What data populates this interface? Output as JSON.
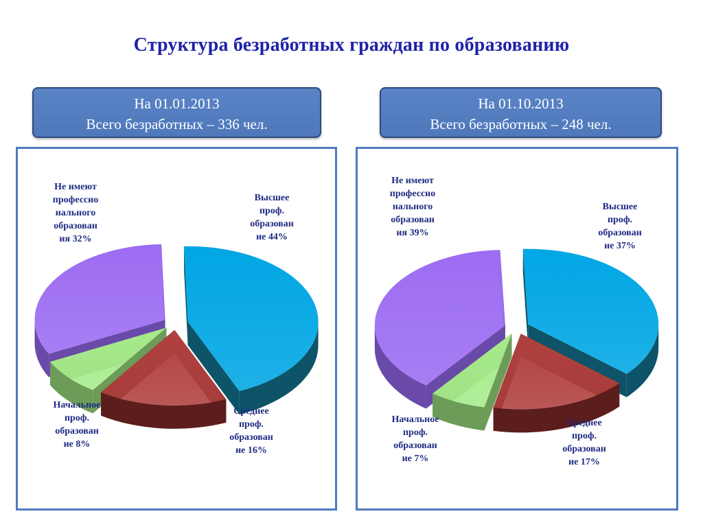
{
  "title": "Структура безработных граждан по образованию",
  "panels": {
    "left": {
      "line1": "На 01.01.2013",
      "line2": "Всего безработных – 336 чел."
    },
    "right": {
      "line1": "На 01.10.2013",
      "line2": "Всего безработных – 248 чел."
    }
  },
  "labels": {
    "left": {
      "none": "Не имеют\nпрофессио\nнального\nобразован\nия 32%",
      "higher": "Высшее\nпроф.\nобразован\nие 44%",
      "primary": "Начальное\nпроф.\nобразован\nие 8%",
      "secondary": "Среднее\nпроф.\nобразован\nие 16%"
    },
    "right": {
      "none": "Не имеют\nпрофессио\nнального\nобразован\nия 39%",
      "higher": "Высшее\nпроф.\nобразован\nие 37%",
      "primary": "Начальное\nпроф.\nобразован\nие 7%",
      "secondary": "Среднее\nпроф.\nобразован\nие 17%"
    }
  },
  "chart_data": [
    {
      "type": "pie",
      "title": "На 01.01.2013",
      "categories": [
        "Высшее проф. образование",
        "Среднее проф. образование",
        "Начальное проф. образование",
        "Не имеют профессионального образования"
      ],
      "values": [
        44,
        16,
        8,
        32
      ],
      "colors": [
        "#00a6e4",
        "#b0413f",
        "#a7eb8c",
        "#9c6cf2"
      ],
      "side_colors": [
        "#0d5469",
        "#5c1d1d",
        "#6c9c58",
        "#6a4aa8"
      ]
    },
    {
      "type": "pie",
      "title": "На 01.10.2013",
      "categories": [
        "Высшее проф. образование",
        "Среднее проф. образование",
        "Начальное проф. образование",
        "Не имеют профессионального образования"
      ],
      "values": [
        37,
        17,
        7,
        39
      ],
      "colors": [
        "#00a6e4",
        "#b0413f",
        "#a7eb8c",
        "#9c6cf2"
      ],
      "side_colors": [
        "#0d5469",
        "#5c1d1d",
        "#6c9c58",
        "#6a4aa8"
      ]
    }
  ]
}
